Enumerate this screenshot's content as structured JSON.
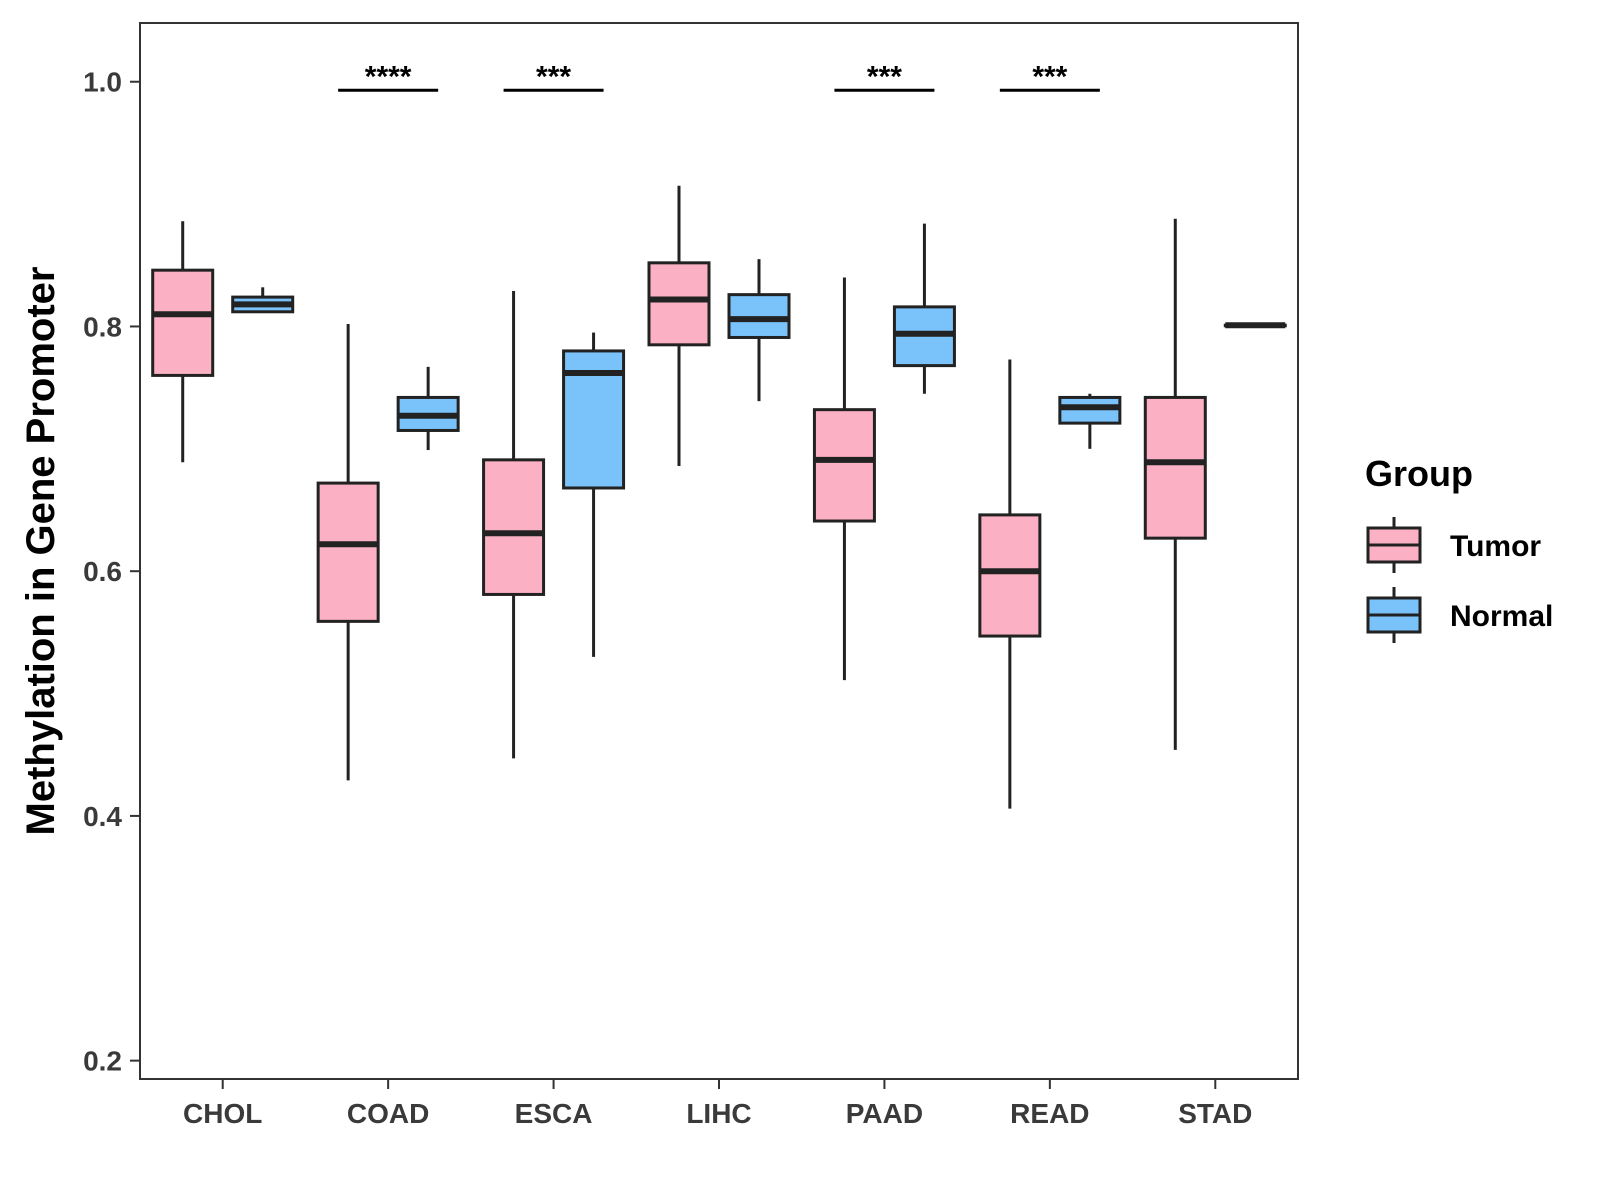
{
  "chart_data": {
    "type": "boxplot",
    "title": "",
    "xlabel": "",
    "ylabel": "Methylation in Gene Promoter",
    "ylim": [
      0.185,
      1.048
    ],
    "yticks": [
      0.2,
      0.4,
      0.6,
      0.8,
      1.0
    ],
    "ytick_labels": [
      "0.2",
      "0.4",
      "0.6",
      "0.8",
      "1.0"
    ],
    "grid": false,
    "categories": [
      "CHOL",
      "COAD",
      "ESCA",
      "LIHC",
      "PAAD",
      "READ",
      "STAD"
    ],
    "legend": {
      "title": "Group",
      "position": "right",
      "entries": [
        {
          "name": "Tumor",
          "color": "#FBB1C3"
        },
        {
          "name": "Normal",
          "color": "#7AC2FA"
        }
      ]
    },
    "series": [
      {
        "name": "Tumor",
        "color": "#FBB1C3",
        "boxes": [
          {
            "category": "CHOL",
            "min": 0.689,
            "q1": 0.76,
            "median": 0.81,
            "q3": 0.846,
            "max": 0.886
          },
          {
            "category": "COAD",
            "min": 0.429,
            "q1": 0.559,
            "median": 0.622,
            "q3": 0.672,
            "max": 0.802
          },
          {
            "category": "ESCA",
            "min": 0.447,
            "q1": 0.581,
            "median": 0.631,
            "q3": 0.691,
            "max": 0.829
          },
          {
            "category": "LIHC",
            "min": 0.686,
            "q1": 0.785,
            "median": 0.822,
            "q3": 0.852,
            "max": 0.915
          },
          {
            "category": "PAAD",
            "min": 0.511,
            "q1": 0.641,
            "median": 0.691,
            "q3": 0.732,
            "max": 0.84
          },
          {
            "category": "READ",
            "min": 0.406,
            "q1": 0.547,
            "median": 0.6,
            "q3": 0.646,
            "max": 0.773
          },
          {
            "category": "STAD",
            "min": 0.454,
            "q1": 0.627,
            "median": 0.689,
            "q3": 0.742,
            "max": 0.888
          }
        ]
      },
      {
        "name": "Normal",
        "color": "#7AC2FA",
        "boxes": [
          {
            "category": "CHOL",
            "min": 0.812,
            "q1": 0.812,
            "median": 0.818,
            "q3": 0.824,
            "max": 0.832
          },
          {
            "category": "COAD",
            "min": 0.699,
            "q1": 0.715,
            "median": 0.727,
            "q3": 0.742,
            "max": 0.767
          },
          {
            "category": "ESCA",
            "min": 0.53,
            "q1": 0.668,
            "median": 0.762,
            "q3": 0.78,
            "max": 0.795
          },
          {
            "category": "LIHC",
            "min": 0.739,
            "q1": 0.791,
            "median": 0.806,
            "q3": 0.826,
            "max": 0.855
          },
          {
            "category": "PAAD",
            "min": 0.745,
            "q1": 0.768,
            "median": 0.794,
            "q3": 0.816,
            "max": 0.884
          },
          {
            "category": "READ",
            "min": 0.7,
            "q1": 0.721,
            "median": 0.734,
            "q3": 0.742,
            "max": 0.745
          },
          {
            "category": "STAD",
            "min": 0.801,
            "q1": 0.801,
            "median": 0.801,
            "q3": 0.801,
            "max": 0.801
          }
        ]
      }
    ],
    "annotations": [
      {
        "category": "COAD",
        "label": "****",
        "y": 0.993
      },
      {
        "category": "ESCA",
        "label": "***",
        "y": 0.993
      },
      {
        "category": "PAAD",
        "label": "***",
        "y": 0.993
      },
      {
        "category": "READ",
        "label": "***",
        "y": 0.993
      }
    ]
  }
}
